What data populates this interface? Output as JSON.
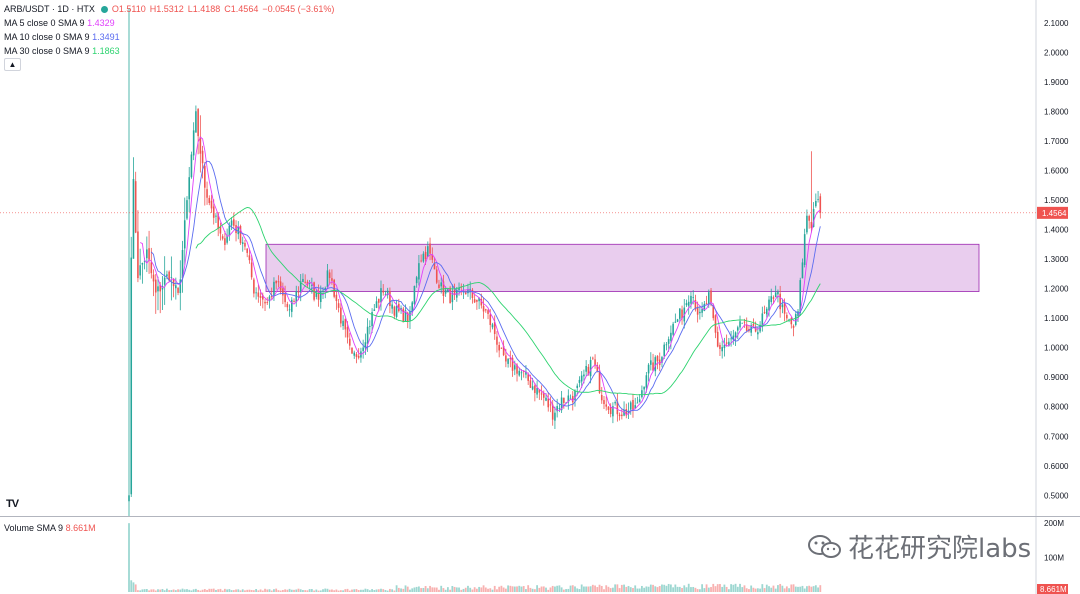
{
  "header": {
    "symbol": "ARB/USDT · 1D · HTX",
    "status_dot_color": "#26a69a",
    "ohlc": [
      {
        "k": "O",
        "v": "1.5110"
      },
      {
        "k": "H",
        "v": "1.5312"
      },
      {
        "k": "L",
        "v": "1.4188"
      },
      {
        "k": "C",
        "v": "1.4564"
      },
      {
        "k": "",
        "v": "−0.0545 (−3.61%)"
      }
    ],
    "ohlc_color": "#ef5350"
  },
  "indicators": [
    {
      "label": "MA 5 close 0 SMA 9",
      "value": "1.4329",
      "color": "#e040fb"
    },
    {
      "label": "MA 10 close 0 SMA 9",
      "value": "1.3491",
      "color": "#5b6cf0"
    },
    {
      "label": "MA 30 close 0 SMA 9",
      "value": "1.1863",
      "color": "#2dd36f"
    }
  ],
  "volume_indicator": {
    "label": "Volume SMA 9",
    "value": "8.661M",
    "color": "#ef5350"
  },
  "logo": "TV",
  "watermark": "花花研究院labs",
  "colors": {
    "up": "#26a69a",
    "down": "#ef5350",
    "zone_fill": "#e9cdee",
    "zone_stroke": "#9c27b0",
    "last_price_bg": "#ef5350"
  },
  "chart_data": {
    "type": "candlestick",
    "price_axis": {
      "ticks": [
        "2.1000",
        "2.0000",
        "1.9000",
        "1.8000",
        "1.7000",
        "1.6000",
        "1.5000",
        "1.4000",
        "1.3000",
        "1.2000",
        "1.1000",
        "1.0000",
        "0.9000",
        "0.8000",
        "0.7000",
        "0.6000",
        "0.5000"
      ],
      "ylim": [
        0.43,
        2.15
      ]
    },
    "volume_axis": {
      "ticks": [
        "200M",
        "100M"
      ],
      "ylim": [
        0,
        215
      ]
    },
    "last_price": 1.4564,
    "last_price_label": "1.4564",
    "last_volume_label": "8.661M",
    "resistance_zone": {
      "low": 1.19,
      "high": 1.35
    },
    "anchors": [
      [
        0,
        0.5
      ],
      [
        1,
        1.33
      ],
      [
        2,
        1.55
      ],
      [
        4,
        1.25
      ],
      [
        8,
        1.32
      ],
      [
        12,
        1.18
      ],
      [
        18,
        1.25
      ],
      [
        22,
        1.17
      ],
      [
        28,
        1.65
      ],
      [
        30,
        1.78
      ],
      [
        34,
        1.55
      ],
      [
        38,
        1.45
      ],
      [
        42,
        1.35
      ],
      [
        46,
        1.43
      ],
      [
        52,
        1.35
      ],
      [
        56,
        1.2
      ],
      [
        62,
        1.15
      ],
      [
        66,
        1.22
      ],
      [
        72,
        1.12
      ],
      [
        78,
        1.24
      ],
      [
        84,
        1.17
      ],
      [
        90,
        1.25
      ],
      [
        96,
        1.07
      ],
      [
        100,
        0.96
      ],
      [
        104,
        1.0
      ],
      [
        110,
        1.13
      ],
      [
        114,
        1.2
      ],
      [
        120,
        1.12
      ],
      [
        126,
        1.1
      ],
      [
        130,
        1.3
      ],
      [
        134,
        1.33
      ],
      [
        140,
        1.2
      ],
      [
        146,
        1.16
      ],
      [
        150,
        1.2
      ],
      [
        156,
        1.16
      ],
      [
        160,
        1.12
      ],
      [
        164,
        1.05
      ],
      [
        168,
        0.95
      ],
      [
        174,
        0.93
      ],
      [
        180,
        0.88
      ],
      [
        186,
        0.83
      ],
      [
        190,
        0.78
      ],
      [
        194,
        0.82
      ],
      [
        200,
        0.84
      ],
      [
        206,
        0.93
      ],
      [
        208,
        0.96
      ],
      [
        212,
        0.84
      ],
      [
        216,
        0.8
      ],
      [
        222,
        0.78
      ],
      [
        228,
        0.8
      ],
      [
        232,
        0.92
      ],
      [
        238,
        0.96
      ],
      [
        242,
        1.05
      ],
      [
        248,
        1.12
      ],
      [
        252,
        1.2
      ],
      [
        256,
        1.1
      ],
      [
        260,
        1.17
      ],
      [
        264,
        1.0
      ],
      [
        270,
        1.02
      ],
      [
        274,
        1.07
      ],
      [
        280,
        1.05
      ],
      [
        286,
        1.12
      ],
      [
        290,
        1.2
      ],
      [
        294,
        1.1
      ],
      [
        298,
        1.07
      ],
      [
        300,
        1.12
      ],
      [
        302,
        1.3
      ],
      [
        304,
        1.45
      ],
      [
        306,
        1.42
      ],
      [
        308,
        1.51
      ],
      [
        310,
        1.4564
      ]
    ],
    "ma_periods": [
      5,
      10,
      30
    ]
  }
}
